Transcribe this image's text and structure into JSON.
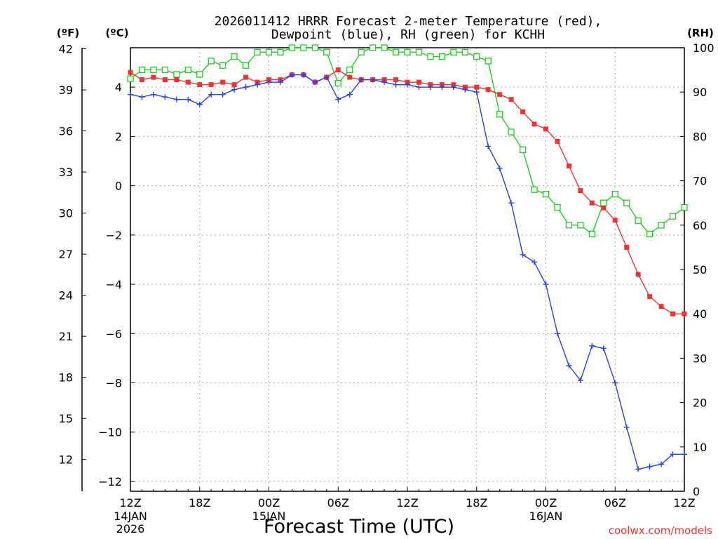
{
  "chart_data": {
    "type": "line",
    "title_line1": "2026011412 HRRR Forecast 2-meter Temperature (red),",
    "title_line2": "Dewpoint (blue), RH (green) for KCHH",
    "left_outer_label": "(ºF)",
    "left_inner_label": "(ºC)",
    "right_label": "(RH)",
    "xlabel": "Forecast Time (UTC)",
    "credit": "coolwx.com/models",
    "x_hours_range": [
      0,
      48
    ],
    "ylim_c": [
      -12.4,
      5.6
    ],
    "ylim_rh": [
      0,
      100
    ],
    "y_ticks_c": [
      "-12",
      "-10",
      "-8",
      "-6",
      "-4",
      "-2",
      "0",
      "2",
      "4"
    ],
    "y_ticks_f": [
      "12",
      "15",
      "18",
      "21",
      "24",
      "27",
      "30",
      "33",
      "36",
      "39",
      "42"
    ],
    "y_ticks_rh": [
      "0",
      "10",
      "20",
      "30",
      "40",
      "50",
      "60",
      "70",
      "80",
      "90",
      "100"
    ],
    "x_ticks": [
      {
        "hour": 0,
        "label": "12Z",
        "sub1": "14JAN",
        "sub2": "2026"
      },
      {
        "hour": 6,
        "label": "18Z",
        "sub1": "",
        "sub2": ""
      },
      {
        "hour": 12,
        "label": "00Z",
        "sub1": "15JAN",
        "sub2": ""
      },
      {
        "hour": 18,
        "label": "06Z",
        "sub1": "",
        "sub2": ""
      },
      {
        "hour": 24,
        "label": "12Z",
        "sub1": "",
        "sub2": ""
      },
      {
        "hour": 30,
        "label": "18Z",
        "sub1": "",
        "sub2": ""
      },
      {
        "hour": 36,
        "label": "00Z",
        "sub1": "16JAN",
        "sub2": ""
      },
      {
        "hour": 42,
        "label": "06Z",
        "sub1": "",
        "sub2": ""
      },
      {
        "hour": 48,
        "label": "12Z",
        "sub1": "",
        "sub2": ""
      }
    ],
    "hours": [
      0,
      1,
      2,
      3,
      4,
      5,
      6,
      7,
      8,
      9,
      10,
      11,
      12,
      13,
      14,
      15,
      16,
      17,
      18,
      19,
      20,
      21,
      22,
      23,
      24,
      25,
      26,
      27,
      28,
      29,
      30,
      31,
      32,
      33,
      34,
      35,
      36,
      37,
      38,
      39,
      40,
      41,
      42,
      43,
      44,
      45,
      46,
      47,
      48
    ],
    "series": [
      {
        "name": "Temperature",
        "unit": "C",
        "color": "#ee3333",
        "marker": "filled-square",
        "values": [
          4.6,
          4.3,
          4.4,
          4.3,
          4.3,
          4.2,
          4.1,
          4.1,
          4.2,
          4.1,
          4.4,
          4.2,
          4.3,
          4.3,
          4.5,
          4.5,
          4.2,
          4.4,
          4.7,
          4.4,
          4.3,
          4.3,
          4.3,
          4.3,
          4.2,
          4.2,
          4.1,
          4.1,
          4.1,
          4.0,
          4.0,
          3.9,
          3.7,
          3.5,
          3.0,
          2.5,
          2.3,
          1.8,
          0.8,
          -0.2,
          -0.7,
          -0.9,
          -1.4,
          -2.5,
          -3.6,
          -4.5,
          -4.9,
          -5.2,
          -5.2
        ]
      },
      {
        "name": "Dewpoint",
        "unit": "C",
        "color": "#2244ee",
        "marker": "plus",
        "values": [
          3.7,
          3.6,
          3.7,
          3.6,
          3.5,
          3.5,
          3.3,
          3.7,
          3.7,
          3.9,
          4.0,
          4.1,
          4.2,
          4.2,
          4.5,
          4.5,
          4.2,
          4.4,
          3.5,
          3.7,
          4.3,
          4.3,
          4.2,
          4.1,
          4.1,
          4.0,
          4.0,
          4.0,
          4.0,
          3.9,
          3.8,
          1.6,
          0.7,
          -0.7,
          -2.8,
          -3.1,
          -4.0,
          -6.0,
          -7.3,
          -7.9,
          -6.5,
          -6.6,
          -8.0,
          -9.8,
          -11.5,
          -11.4,
          -11.3,
          -10.9,
          -10.9
        ]
      },
      {
        "name": "RH",
        "unit": "%",
        "color": "#22cc22",
        "marker": "open-square",
        "values": [
          93,
          95,
          95,
          95,
          94,
          95,
          94,
          97,
          96,
          98,
          96,
          99,
          99,
          99,
          100,
          100,
          100,
          99,
          92,
          95,
          99,
          100,
          100,
          99,
          99,
          99,
          98,
          98,
          99,
          99,
          98,
          97,
          85,
          81,
          77,
          68,
          67,
          64,
          60,
          60,
          58,
          65,
          67,
          65,
          61,
          58,
          60,
          62,
          64
        ]
      }
    ]
  }
}
